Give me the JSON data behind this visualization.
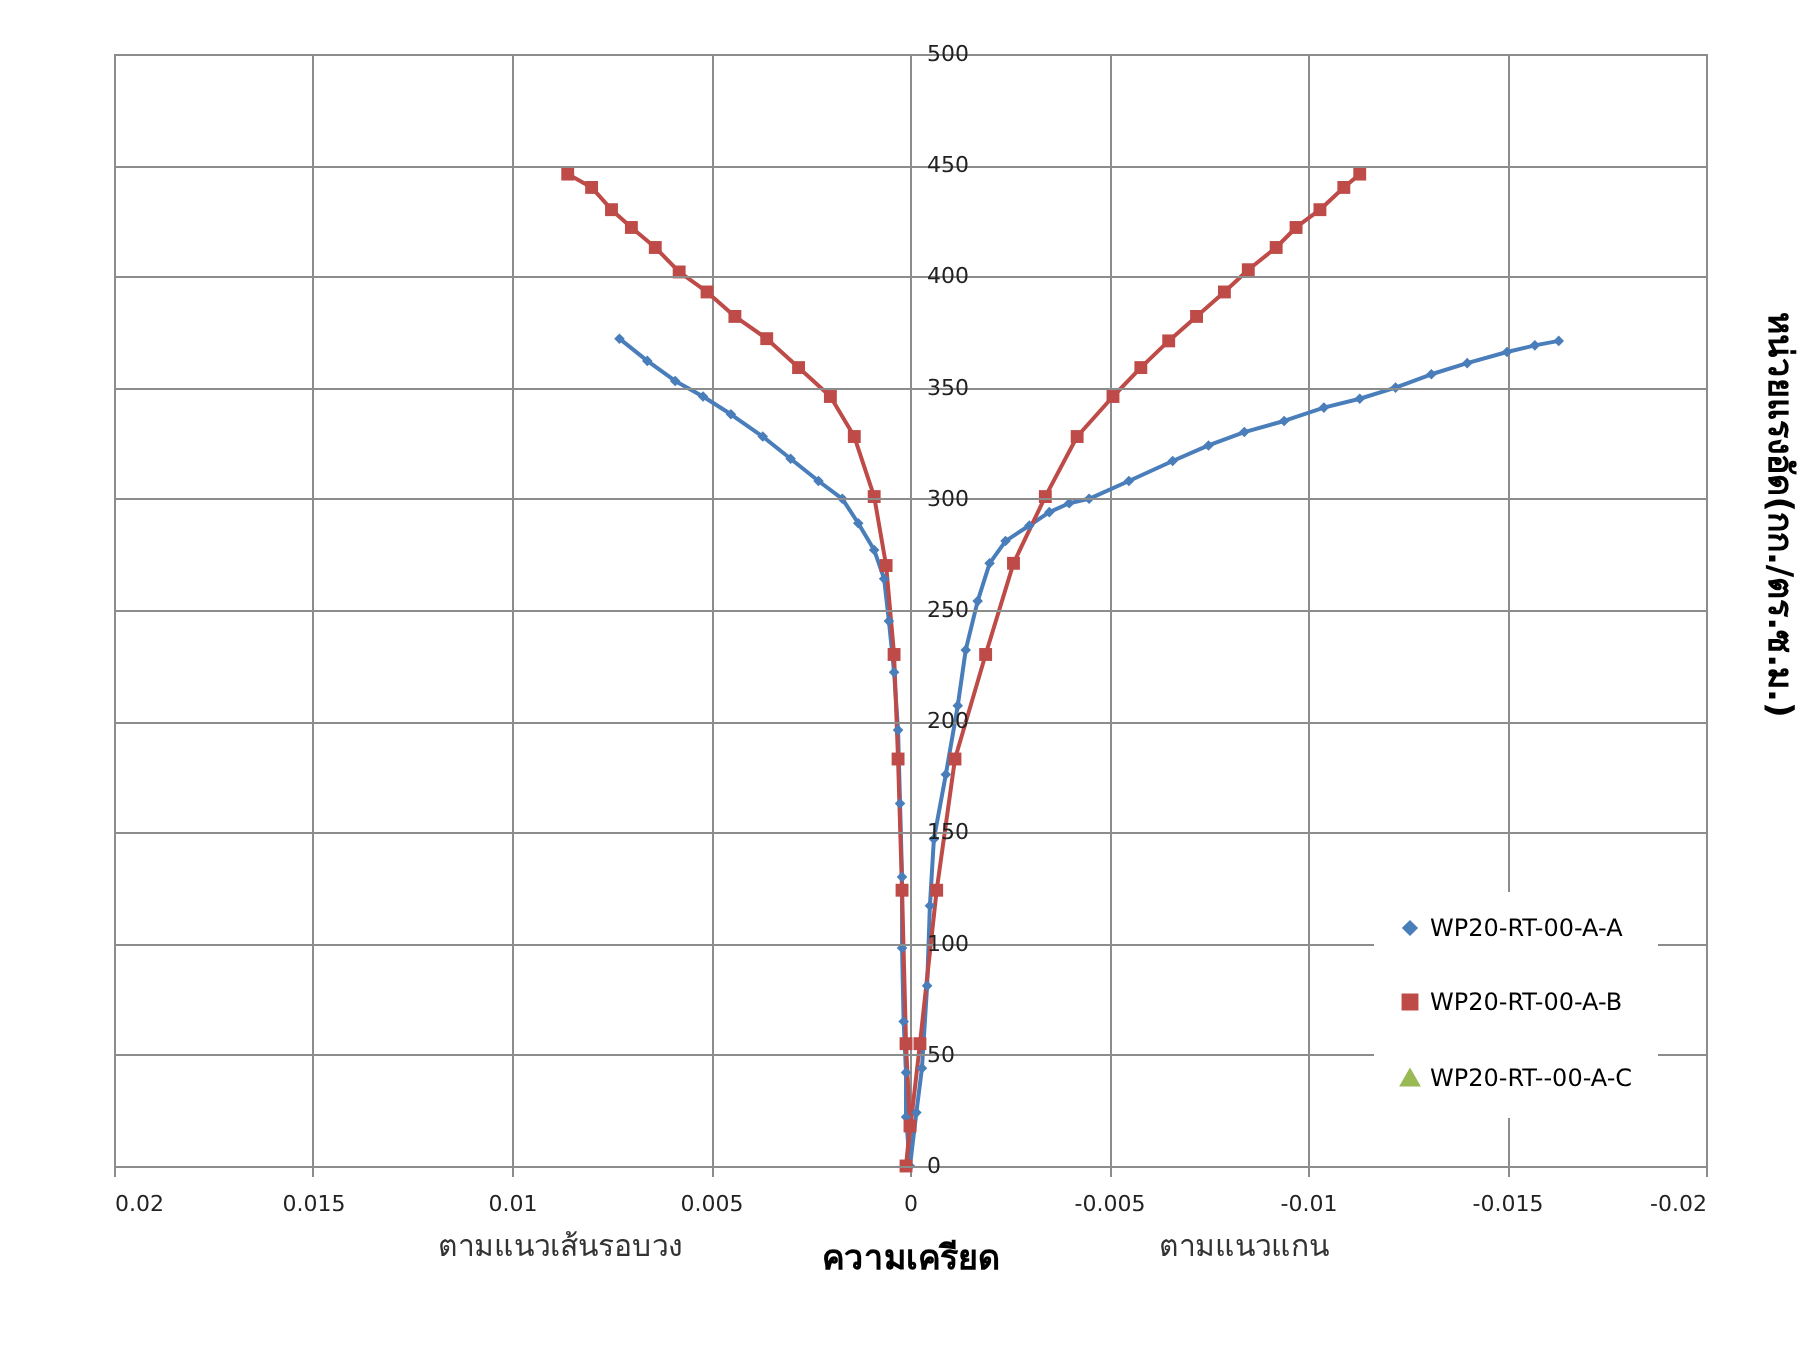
{
  "chart_data": {
    "type": "line",
    "xlabel": "ความเครียด",
    "ylabel": "หน่วยแรงอัด(กก./ตร.ซ.ม.)",
    "annotations": [
      "ตามแนวเส้นรอบวง",
      "ตามแนวแกน"
    ],
    "xlim": [
      0.02,
      -0.02
    ],
    "xticks": [
      0.02,
      0.015,
      0.01,
      0.005,
      0,
      -0.005,
      -0.01,
      -0.015,
      -0.02
    ],
    "ylim": [
      0,
      500
    ],
    "yticks": [
      0,
      50,
      100,
      150,
      200,
      250,
      300,
      350,
      400,
      450,
      500
    ],
    "grid": true,
    "legend": "bottom right",
    "series": [
      {
        "name": "WP20-RT-00-A-A",
        "color": "#4a7ebb",
        "marker": "diamond",
        "x": [
          0.0073,
          0.0066,
          0.0059,
          0.0052,
          0.0045,
          0.0037,
          0.003,
          0.0023,
          0.0017,
          0.0013,
          0.0009,
          0.00065,
          0.00053,
          0.0004,
          0.0003,
          0.00025,
          0.0002,
          0.0002,
          0.00016,
          0.0001,
          0.0001,
          0,
          -0.00016,
          -0.0003,
          -0.00043,
          -0.0005,
          -0.0006,
          -0.0009,
          -0.0012,
          -0.0014,
          -0.0017,
          -0.002,
          -0.0024,
          -0.003,
          -0.0035,
          -0.004,
          -0.0045,
          -0.0055,
          -0.0066,
          -0.0075,
          -0.0084,
          -0.0094,
          -0.0104,
          -0.0113,
          -0.0122,
          -0.0131,
          -0.014,
          -0.015,
          -0.0157,
          -0.0163
        ],
        "values": [
          372,
          362,
          353,
          346,
          338,
          328,
          318,
          308,
          300,
          289,
          277,
          264,
          245,
          222,
          196,
          163,
          130,
          98,
          65,
          42,
          22,
          0,
          24,
          44,
          81,
          117,
          147,
          176,
          207,
          232,
          254,
          271,
          281,
          288,
          294,
          298,
          300,
          308,
          317,
          324,
          330,
          335,
          341,
          345,
          350,
          356,
          361,
          366,
          369,
          371
        ]
      },
      {
        "name": "WP20-RT-00-A-B",
        "color": "#be4b48",
        "marker": "square",
        "x": [
          0.0086,
          0.008,
          0.0075,
          0.007,
          0.0064,
          0.0058,
          0.0051,
          0.0044,
          0.0036,
          0.0028,
          0.002,
          0.0014,
          0.0009,
          0.0006,
          0.0004,
          0.0003,
          0.0002,
          0.0001,
          0,
          0.0001,
          -0.00025,
          -0.00067,
          -0.00113,
          -0.0019,
          -0.0026,
          -0.0034,
          -0.0042,
          -0.0051,
          -0.0058,
          -0.0065,
          -0.0072,
          -0.0079,
          -0.0085,
          -0.0092,
          -0.0097,
          -0.0103,
          -0.0109,
          -0.0113
        ],
        "values": [
          446,
          440,
          430,
          422,
          413,
          402,
          393,
          382,
          372,
          359,
          346,
          328,
          301,
          270,
          230,
          183,
          124,
          55,
          18,
          0,
          55,
          124,
          183,
          230,
          271,
          301,
          328,
          346,
          359,
          371,
          382,
          393,
          403,
          413,
          422,
          430,
          440,
          446
        ]
      },
      {
        "name": "WP20-RT--00-A-C",
        "color": "#98b954",
        "marker": "triangle"
      }
    ]
  }
}
